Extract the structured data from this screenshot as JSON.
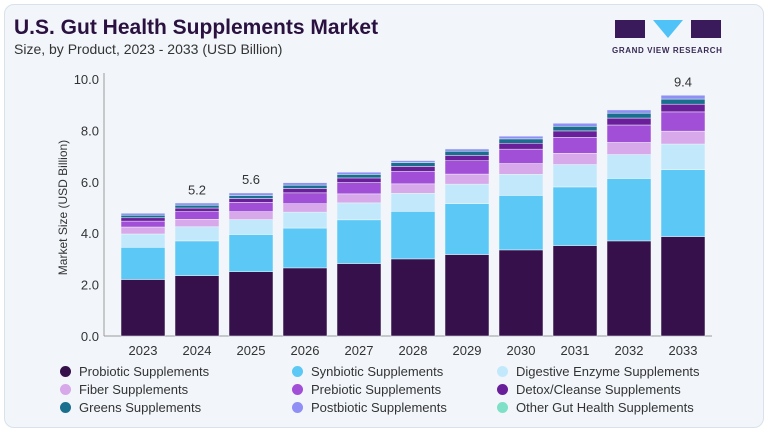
{
  "header": {
    "title": "U.S. Gut Health Supplements Market",
    "subtitle": "Size, by Product, 2023 - 2033 (USD Billion)",
    "logo_text": "GRAND VIEW RESEARCH"
  },
  "chart_data": {
    "type": "bar",
    "stacked": true,
    "categories": [
      "2023",
      "2024",
      "2025",
      "2026",
      "2027",
      "2028",
      "2029",
      "2030",
      "2031",
      "2032",
      "2033"
    ],
    "ylabel": "Market Size (USD Billion)",
    "xlabel": "",
    "ylim": [
      0,
      10
    ],
    "yticks": [
      "0.0",
      "2.0",
      "4.0",
      "6.0",
      "8.0",
      "10.0"
    ],
    "grid": false,
    "legend_position": "bottom",
    "annotations": [
      {
        "category": "2024",
        "label": "5.2",
        "value": 5.2
      },
      {
        "category": "2025",
        "label": "5.6",
        "value": 5.6
      },
      {
        "category": "2033",
        "label": "9.4",
        "value": 9.4
      }
    ],
    "series": [
      {
        "name": "Probiotic Supplements",
        "color": "#35104a",
        "values": [
          2.2,
          2.35,
          2.5,
          2.65,
          2.82,
          3.0,
          3.17,
          3.35,
          3.52,
          3.7,
          3.87
        ]
      },
      {
        "name": "Synbiotic Supplements",
        "color": "#5bc8f5",
        "values": [
          1.25,
          1.35,
          1.45,
          1.55,
          1.7,
          1.85,
          1.98,
          2.12,
          2.28,
          2.43,
          2.6
        ]
      },
      {
        "name": "Digestive Enzyme Supplements",
        "color": "#c2e9fb",
        "values": [
          0.52,
          0.55,
          0.58,
          0.62,
          0.66,
          0.7,
          0.76,
          0.82,
          0.87,
          0.93,
          1.0
        ]
      },
      {
        "name": "Fiber Supplements",
        "color": "#d7a8ea",
        "values": [
          0.27,
          0.29,
          0.31,
          0.33,
          0.35,
          0.37,
          0.39,
          0.42,
          0.44,
          0.47,
          0.5
        ]
      },
      {
        "name": "Prebiotic Supplements",
        "color": "#a24fd8",
        "values": [
          0.23,
          0.3,
          0.36,
          0.42,
          0.44,
          0.48,
          0.52,
          0.56,
          0.62,
          0.68,
          0.75
        ]
      },
      {
        "name": "Detox/Cleanse Supplements",
        "color": "#6a1f9a",
        "values": [
          0.13,
          0.14,
          0.15,
          0.17,
          0.18,
          0.2,
          0.21,
          0.23,
          0.25,
          0.27,
          0.3
        ]
      },
      {
        "name": "Greens Supplements",
        "color": "#1a6f8f",
        "values": [
          0.1,
          0.11,
          0.12,
          0.13,
          0.14,
          0.15,
          0.16,
          0.17,
          0.18,
          0.19,
          0.2
        ]
      },
      {
        "name": "Postbiotic Supplements",
        "color": "#8f8ff5",
        "values": [
          0.08,
          0.09,
          0.1,
          0.1,
          0.09,
          0.08,
          0.09,
          0.11,
          0.12,
          0.13,
          0.15
        ]
      },
      {
        "name": "Other Gut Health Supplements",
        "color": "#7fe0c8",
        "values": [
          0.02,
          0.02,
          0.02,
          0.02,
          0.02,
          0.02,
          0.02,
          0.02,
          0.02,
          0.02,
          0.02
        ]
      }
    ],
    "legend_order": [
      0,
      3,
      6,
      1,
      4,
      7,
      2,
      5,
      8
    ]
  }
}
